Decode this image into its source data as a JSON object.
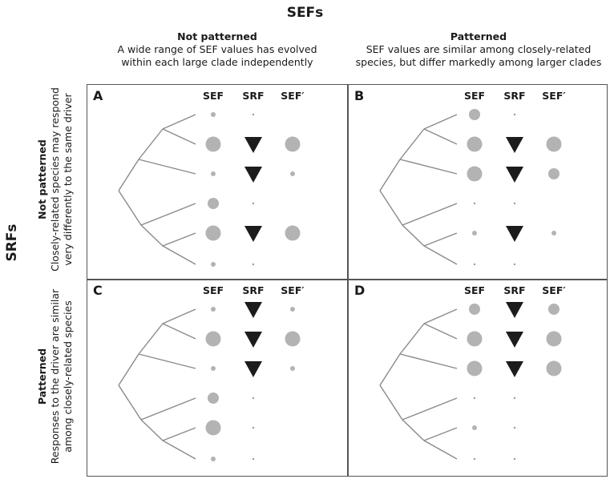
{
  "title": "SEFs",
  "columns": [
    {
      "title": "Not patterned",
      "desc_line1": "A wide range of SEF values has evolved",
      "desc_line2": "within each large clade independently"
    },
    {
      "title": "Patterned",
      "desc_line1": "SEF values are similar among closely-related",
      "desc_line2": "species, but differ markedly among larger clades"
    }
  ],
  "row_axis_label": "SRFs",
  "rows": [
    {
      "title": "Not patterned",
      "desc_line1": "Closely-related species may respond",
      "desc_line2": "very differently to the same driver"
    },
    {
      "title": "Patterned",
      "desc_line1": "Responses to the driver are similar",
      "desc_line2": "among closely-related species"
    }
  ],
  "trait_columns": [
    "SEF",
    "SRF",
    "SEF′"
  ],
  "colors": {
    "circle": "#b3b3b3",
    "triangle": "#1c1c1c",
    "tree": "#8a8a8a",
    "border": "#555555"
  },
  "panels": [
    {
      "label": "A",
      "sef": [
        "s",
        "l",
        "s",
        "m",
        "l",
        "s"
      ],
      "srf": [
        "d",
        "T",
        "T",
        "d",
        "T",
        "d"
      ],
      "sefp": [
        "n",
        "l",
        "s",
        "n",
        "l",
        "n"
      ]
    },
    {
      "label": "B",
      "sef": [
        "m",
        "l",
        "l",
        "d",
        "s",
        "d"
      ],
      "srf": [
        "d",
        "T",
        "T",
        "d",
        "T",
        "d"
      ],
      "sefp": [
        "n",
        "l",
        "m",
        "n",
        "s",
        "n"
      ]
    },
    {
      "label": "C",
      "sef": [
        "s",
        "l",
        "s",
        "m",
        "l",
        "s"
      ],
      "srf": [
        "T",
        "T",
        "T",
        "d",
        "d",
        "d"
      ],
      "sefp": [
        "s",
        "l",
        "s",
        "n",
        "n",
        "n"
      ]
    },
    {
      "label": "D",
      "sef": [
        "m",
        "l",
        "l",
        "d",
        "s",
        "d"
      ],
      "srf": [
        "T",
        "T",
        "T",
        "d",
        "d",
        "d"
      ],
      "sefp": [
        "m",
        "l",
        "l",
        "n",
        "n",
        "n"
      ]
    }
  ]
}
